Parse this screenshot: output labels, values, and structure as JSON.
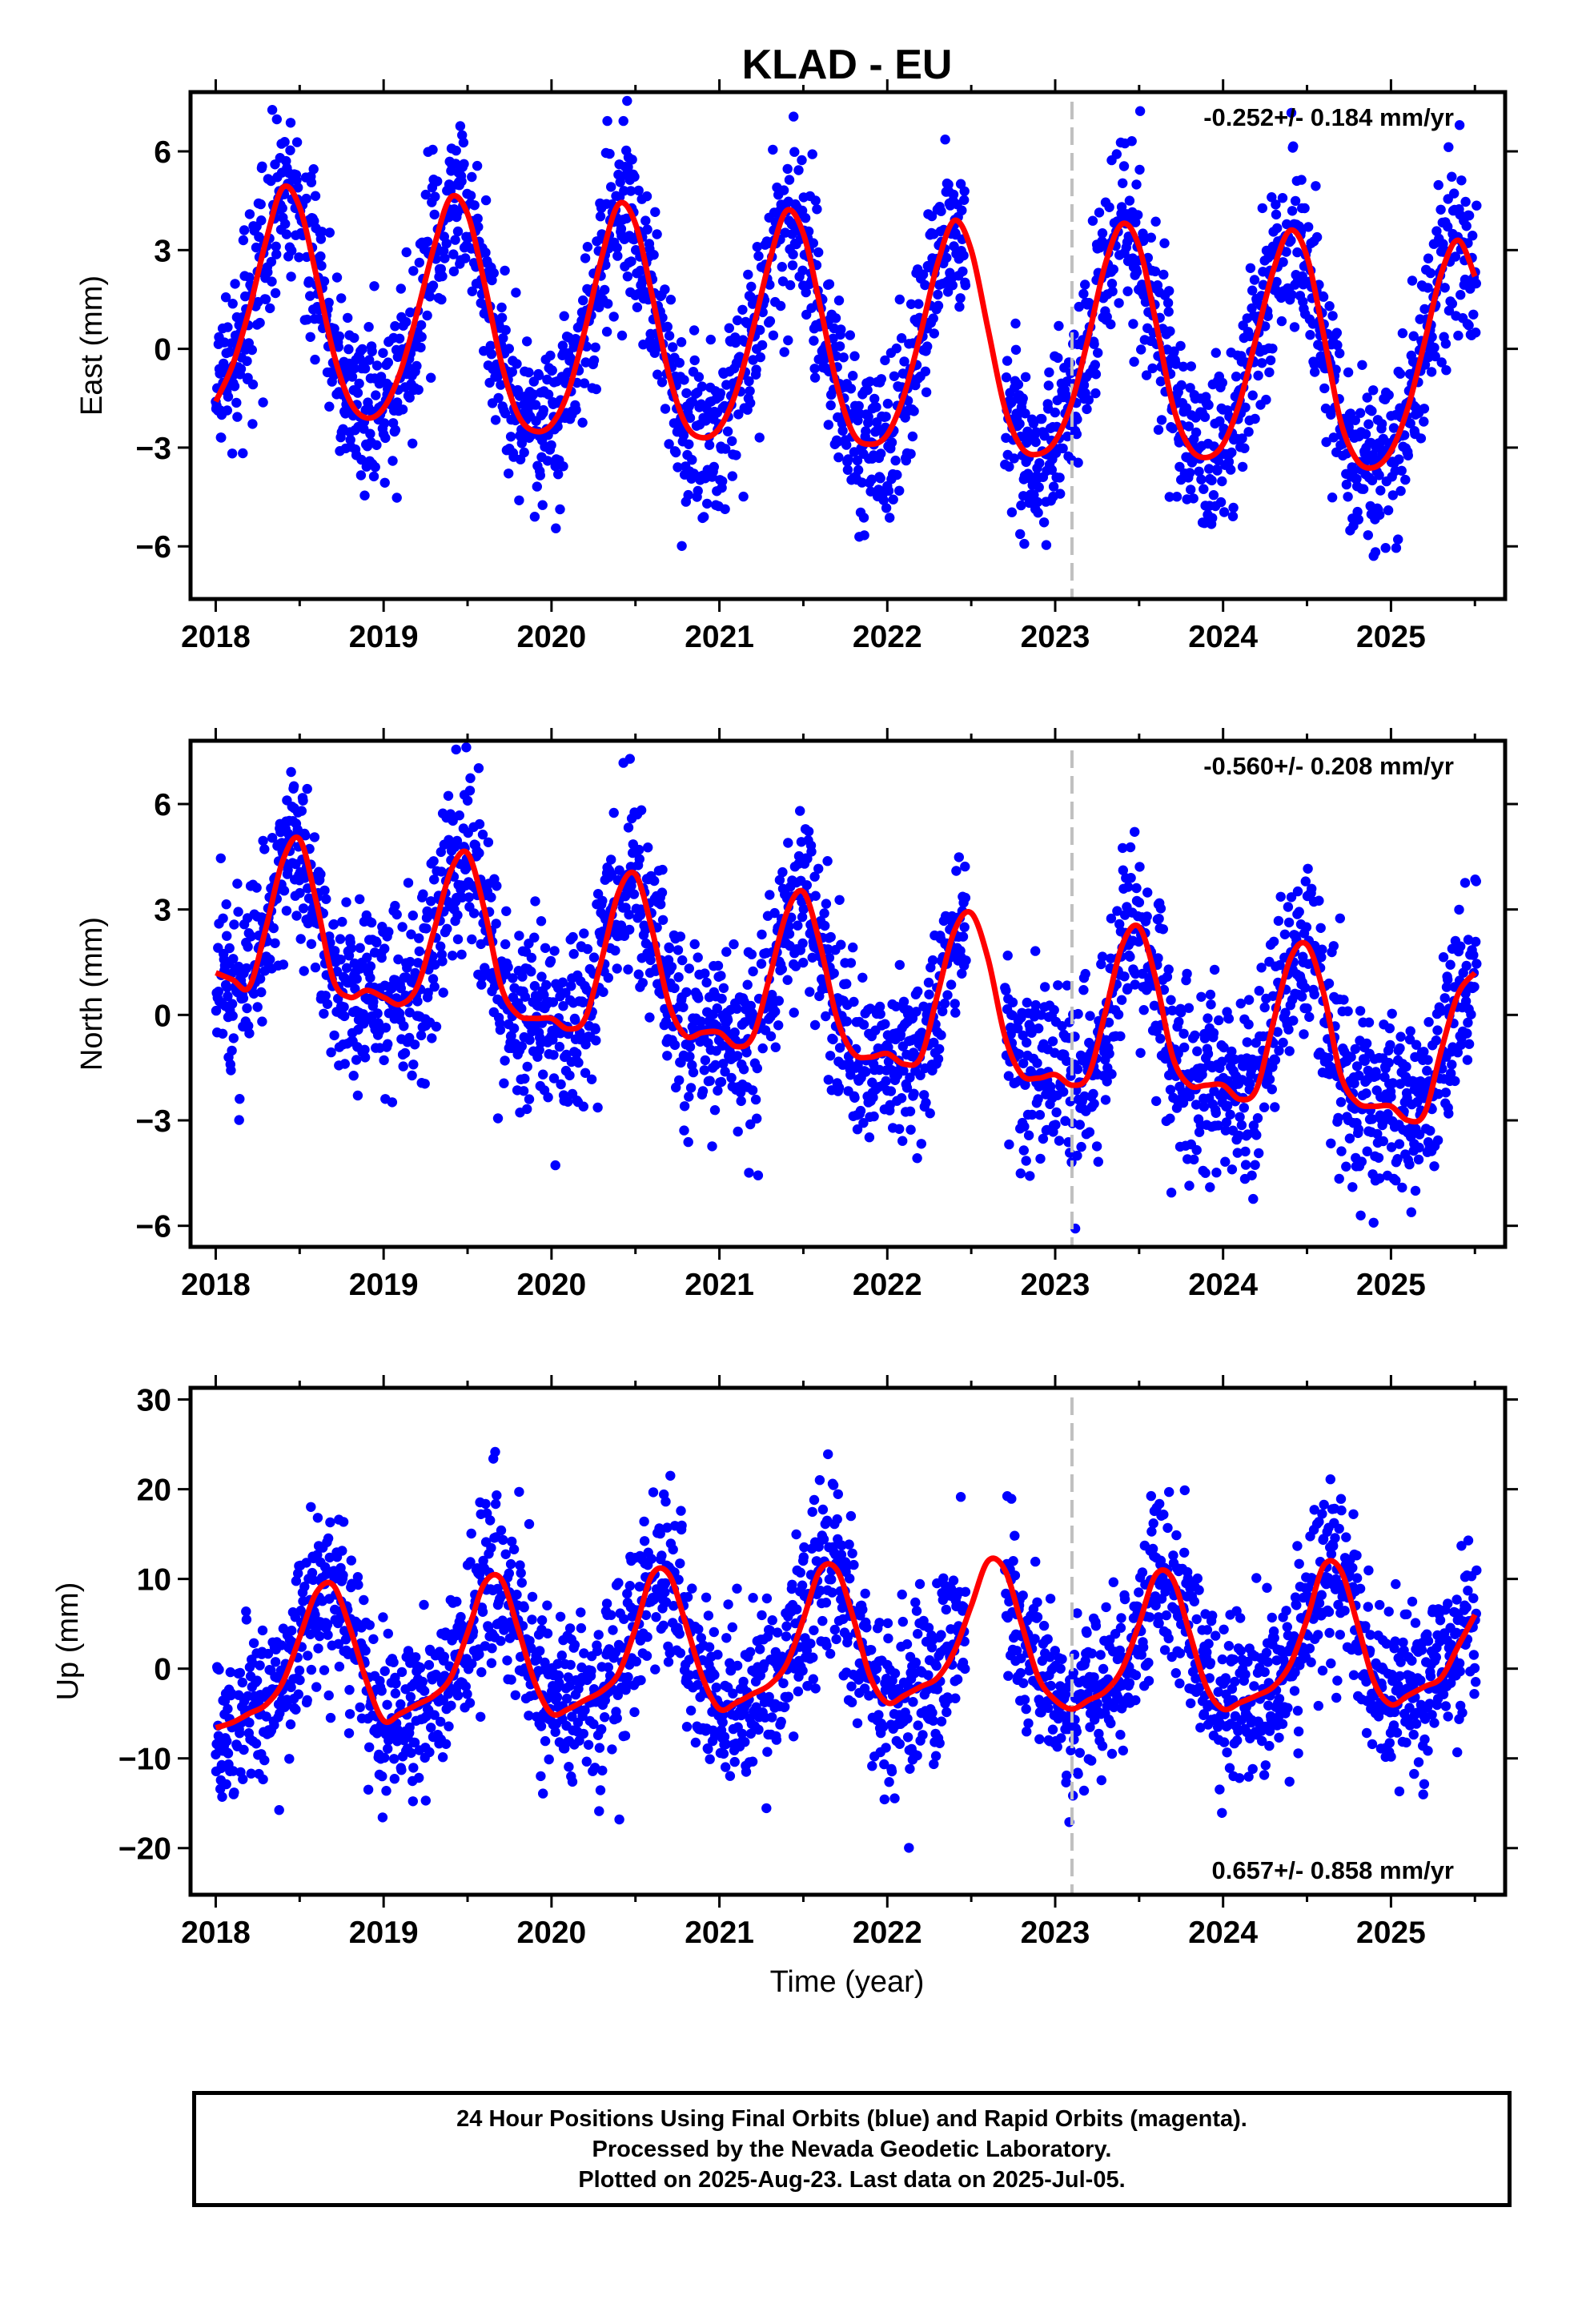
{
  "chart_title": "KLAD - EU",
  "x_axis_label": "Time (year)",
  "caption": {
    "line1": "24 Hour Positions Using Final Orbits (blue) and Rapid Orbits (magenta).",
    "line2": "Processed by the Nevada Geodetic Laboratory.",
    "line3": "Plotted on 2025-Aug-23. Last data on 2025-Jul-05."
  },
  "colors": {
    "points": "#0000ff",
    "fit": "#ff0000",
    "event_line": "#c0c0c0",
    "axes": "#000000"
  },
  "chart_data": [
    {
      "type": "scatter",
      "ylabel": "East (mm)",
      "xlim": [
        2017.85,
        2025.68
      ],
      "ylim": [
        -7.6,
        7.8
      ],
      "xticks": [
        2018,
        2019,
        2020,
        2021,
        2022,
        2023,
        2024,
        2025
      ],
      "xtick_labels": [
        "2018",
        "2019",
        "2020",
        "2021",
        "2022",
        "2023",
        "2024",
        "2025"
      ],
      "yticks": [
        -6,
        -3,
        0,
        3,
        6
      ],
      "ytick_labels": [
        "−6",
        "−3",
        "0",
        "3",
        "6"
      ],
      "rate_label": "-0.252+/- 0.184 mm/yr",
      "rate_label_position": "top-right",
      "event_line_x": 2023.1,
      "fit_series": {
        "x": [
          2018.0,
          2018.1,
          2018.2,
          2018.3,
          2018.4,
          2018.5,
          2018.6,
          2018.7,
          2018.8,
          2018.9,
          2019.0,
          2019.1,
          2019.2,
          2019.3,
          2019.4,
          2019.5,
          2019.6,
          2019.7,
          2019.8,
          2019.9,
          2020.0,
          2020.1,
          2020.2,
          2020.3,
          2020.4,
          2020.5,
          2020.6,
          2020.7,
          2020.8,
          2020.9,
          2021.0,
          2021.1,
          2021.2,
          2021.3,
          2021.4,
          2021.5,
          2021.6,
          2021.7,
          2021.8,
          2021.9,
          2022.0,
          2022.1,
          2022.2,
          2022.3,
          2022.4,
          2022.5,
          2022.6,
          2022.7,
          2022.8,
          2022.9,
          2023.0,
          2023.1,
          2023.2,
          2023.3,
          2023.4,
          2023.5,
          2023.6,
          2023.7,
          2023.8,
          2023.9,
          2024.0,
          2024.1,
          2024.2,
          2024.3,
          2024.4,
          2024.5,
          2024.6,
          2024.7,
          2024.8,
          2024.9,
          2025.0,
          2025.1,
          2025.2,
          2025.3,
          2025.4,
          2025.5
        ],
        "y": [
          -1.6,
          -0.5,
          1.2,
          3.3,
          4.9,
          4.3,
          2.2,
          -0.1,
          -1.6,
          -2.1,
          -1.8,
          -0.7,
          1.1,
          3.1,
          4.6,
          4.1,
          2.0,
          -0.4,
          -2.0,
          -2.5,
          -2.3,
          -1.3,
          0.6,
          2.8,
          4.4,
          3.8,
          1.6,
          -0.8,
          -2.3,
          -2.7,
          -2.4,
          -1.3,
          0.6,
          2.7,
          4.2,
          3.5,
          1.3,
          -1.1,
          -2.6,
          -2.9,
          -2.6,
          -1.4,
          0.5,
          2.6,
          3.9,
          3.0,
          0.6,
          -1.8,
          -3.0,
          -3.2,
          -2.8,
          -1.6,
          0.4,
          2.6,
          3.8,
          3.1,
          0.8,
          -1.7,
          -3.0,
          -3.3,
          -2.9,
          -1.6,
          0.4,
          2.4,
          3.6,
          2.8,
          0.4,
          -2.2,
          -3.4,
          -3.6,
          -3.1,
          -1.8,
          0.2,
          2.3,
          3.3,
          2.2
        ]
      },
      "scatter_noise_sd": 1.3
    },
    {
      "type": "scatter",
      "ylabel": "North (mm)",
      "xlim": [
        2017.85,
        2025.68
      ],
      "ylim": [
        -6.6,
        7.8
      ],
      "xticks": [
        2018,
        2019,
        2020,
        2021,
        2022,
        2023,
        2024,
        2025
      ],
      "xtick_labels": [
        "2018",
        "2019",
        "2020",
        "2021",
        "2022",
        "2023",
        "2024",
        "2025"
      ],
      "yticks": [
        -6,
        -3,
        0,
        3,
        6
      ],
      "ytick_labels": [
        "−6",
        "−3",
        "0",
        "3",
        "6"
      ],
      "rate_label": "-0.560+/- 0.208 mm/yr",
      "rate_label_position": "top-right",
      "event_line_x": 2023.1,
      "fit_series": {
        "x": [
          2018.0,
          2018.1,
          2018.2,
          2018.3,
          2018.4,
          2018.5,
          2018.6,
          2018.7,
          2018.8,
          2018.9,
          2019.0,
          2019.1,
          2019.2,
          2019.3,
          2019.4,
          2019.5,
          2019.6,
          2019.7,
          2019.8,
          2019.9,
          2020.0,
          2020.1,
          2020.2,
          2020.3,
          2020.4,
          2020.5,
          2020.6,
          2020.7,
          2020.8,
          2020.9,
          2021.0,
          2021.1,
          2021.2,
          2021.3,
          2021.4,
          2021.5,
          2021.6,
          2021.7,
          2021.8,
          2021.9,
          2022.0,
          2022.1,
          2022.2,
          2022.3,
          2022.4,
          2022.5,
          2022.6,
          2022.7,
          2022.8,
          2022.9,
          2023.0,
          2023.1,
          2023.2,
          2023.3,
          2023.4,
          2023.5,
          2023.6,
          2023.7,
          2023.8,
          2023.9,
          2024.0,
          2024.1,
          2024.2,
          2024.3,
          2024.4,
          2024.5,
          2024.6,
          2024.7,
          2024.8,
          2024.9,
          2025.0,
          2025.1,
          2025.2,
          2025.3,
          2025.4,
          2025.5
        ],
        "y": [
          1.2,
          1.0,
          0.8,
          2.5,
          4.4,
          5.0,
          3.2,
          1.0,
          0.5,
          0.7,
          0.5,
          0.3,
          0.8,
          2.4,
          4.1,
          4.6,
          3.0,
          0.8,
          0.0,
          -0.1,
          -0.1,
          -0.4,
          -0.1,
          1.6,
          3.5,
          4.0,
          2.4,
          0.3,
          -0.6,
          -0.5,
          -0.5,
          -0.9,
          -0.6,
          1.1,
          2.9,
          3.5,
          2.0,
          -0.1,
          -1.1,
          -1.2,
          -1.1,
          -1.4,
          -1.2,
          0.6,
          2.4,
          2.9,
          1.6,
          -0.6,
          -1.7,
          -1.8,
          -1.7,
          -2.0,
          -1.7,
          0.1,
          2.0,
          2.5,
          1.0,
          -1.2,
          -2.0,
          -2.0,
          -2.0,
          -2.4,
          -2.1,
          -0.2,
          1.6,
          2.0,
          0.6,
          -1.7,
          -2.5,
          -2.6,
          -2.6,
          -3.0,
          -2.8,
          -1.0,
          0.6,
          1.2
        ]
      },
      "scatter_noise_sd": 1.3
    },
    {
      "type": "scatter",
      "ylabel": "Up (mm)",
      "xlim": [
        2017.85,
        2025.68
      ],
      "ylim": [
        -25.2,
        31.3
      ],
      "xticks": [
        2018,
        2019,
        2020,
        2021,
        2022,
        2023,
        2024,
        2025
      ],
      "xtick_labels": [
        "2018",
        "2019",
        "2020",
        "2021",
        "2022",
        "2023",
        "2024",
        "2025"
      ],
      "yticks": [
        -20,
        -10,
        0,
        10,
        20,
        30
      ],
      "ytick_labels": [
        "−20",
        "−10",
        "0",
        "10",
        "20",
        "30"
      ],
      "rate_label": "0.657+/- 0.858 mm/yr",
      "rate_label_position": "bottom-right",
      "event_line_x": 2023.1,
      "fit_series": {
        "x": [
          2018.0,
          2018.1,
          2018.2,
          2018.3,
          2018.4,
          2018.5,
          2018.6,
          2018.7,
          2018.8,
          2018.9,
          2019.0,
          2019.1,
          2019.2,
          2019.3,
          2019.4,
          2019.5,
          2019.6,
          2019.7,
          2019.8,
          2019.9,
          2020.0,
          2020.1,
          2020.2,
          2020.3,
          2020.4,
          2020.5,
          2020.6,
          2020.7,
          2020.8,
          2020.9,
          2021.0,
          2021.1,
          2021.2,
          2021.3,
          2021.4,
          2021.5,
          2021.6,
          2021.7,
          2021.8,
          2021.9,
          2022.0,
          2022.1,
          2022.2,
          2022.3,
          2022.4,
          2022.5,
          2022.6,
          2022.7,
          2022.8,
          2022.9,
          2023.0,
          2023.1,
          2023.2,
          2023.3,
          2023.4,
          2023.5,
          2023.6,
          2023.7,
          2023.8,
          2023.9,
          2024.0,
          2024.1,
          2024.2,
          2024.3,
          2024.4,
          2024.5,
          2024.6,
          2024.7,
          2024.8,
          2024.9,
          2025.0,
          2025.1,
          2025.2,
          2025.3,
          2025.4,
          2025.5
        ],
        "y": [
          -6.6,
          -6.0,
          -5.0,
          -4.0,
          -1.5,
          3.5,
          8.5,
          9.3,
          4.5,
          -1.5,
          -5.8,
          -5.0,
          -4.0,
          -3.0,
          -1.0,
          4.0,
          9.5,
          10.0,
          4.5,
          -1.5,
          -5.0,
          -4.5,
          -3.5,
          -2.5,
          -0.5,
          4.5,
          10.5,
          10.5,
          5.0,
          -1.0,
          -4.5,
          -3.8,
          -2.8,
          -1.8,
          0.5,
          5.5,
          11.0,
          11.0,
          5.5,
          -1.0,
          -3.8,
          -3.0,
          -2.0,
          -1.0,
          2.0,
          7.0,
          12.0,
          11.0,
          5.0,
          -1.0,
          -3.5,
          -4.5,
          -3.5,
          -2.5,
          0.0,
          5.0,
          10.5,
          10.0,
          4.0,
          -2.0,
          -4.5,
          -3.8,
          -3.0,
          -2.0,
          0.5,
          5.5,
          11.5,
          11.0,
          5.0,
          -1.5,
          -4.0,
          -3.0,
          -2.0,
          -1.0,
          2.5,
          6.0
        ]
      },
      "scatter_noise_sd": 4.8
    }
  ]
}
